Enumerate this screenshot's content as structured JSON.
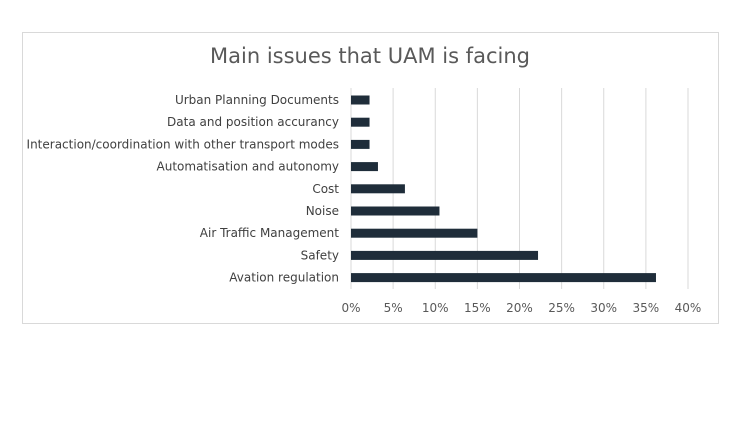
{
  "chart_data": {
    "type": "bar",
    "orientation": "horizontal",
    "title": "Main issues that UAM is facing",
    "categories": [
      "Urban Planning Documents",
      "Data and position accurancy",
      "Interaction/coordination with other transport modes",
      "Automatisation and autonomy",
      "Cost",
      "Noise",
      "Air Traffic Management",
      "Safety",
      "Avation regulation"
    ],
    "values": [
      2.2,
      2.2,
      2.2,
      3.2,
      6.4,
      10.5,
      15.0,
      22.2,
      36.2
    ],
    "xlim": [
      0,
      40
    ],
    "x_ticks": [
      "0%",
      "5%",
      "10%",
      "15%",
      "20%",
      "25%",
      "30%",
      "35%",
      "40%"
    ],
    "grid": "vertical",
    "bar_color": "#1f2d3a"
  }
}
